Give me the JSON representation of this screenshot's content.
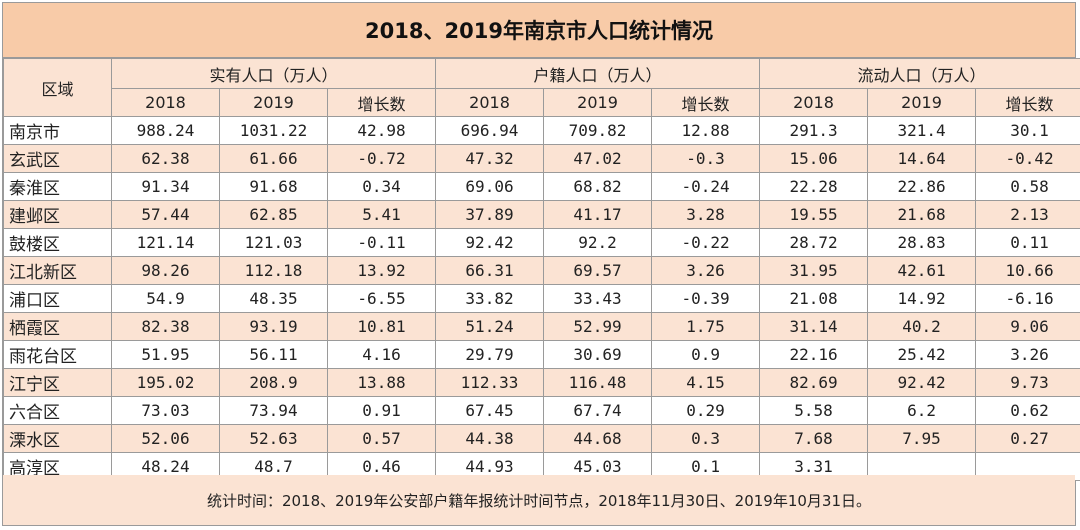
{
  "title": "2018、2019年南京市人口统计情况",
  "header": {
    "region_label": "区域",
    "groups": [
      "实有人口（万人）",
      "户籍人口（万人）",
      "流动人口（万人）"
    ],
    "sub": [
      "2018",
      "2019",
      "增长数"
    ]
  },
  "rows": [
    {
      "region": "南京市",
      "v": [
        "988.24",
        "1031.22",
        "42.98",
        "696.94",
        "709.82",
        "12.88",
        "291.3",
        "321.4",
        "30.1"
      ]
    },
    {
      "region": "玄武区",
      "v": [
        "62.38",
        "61.66",
        "-0.72",
        "47.32",
        "47.02",
        "-0.3",
        "15.06",
        "14.64",
        "-0.42"
      ]
    },
    {
      "region": "秦淮区",
      "v": [
        "91.34",
        "91.68",
        "0.34",
        "69.06",
        "68.82",
        "-0.24",
        "22.28",
        "22.86",
        "0.58"
      ]
    },
    {
      "region": "建邺区",
      "v": [
        "57.44",
        "62.85",
        "5.41",
        "37.89",
        "41.17",
        "3.28",
        "19.55",
        "21.68",
        "2.13"
      ]
    },
    {
      "region": "鼓楼区",
      "v": [
        "121.14",
        "121.03",
        "-0.11",
        "92.42",
        "92.2",
        "-0.22",
        "28.72",
        "28.83",
        "0.11"
      ]
    },
    {
      "region": "江北新区",
      "v": [
        "98.26",
        "112.18",
        "13.92",
        "66.31",
        "69.57",
        "3.26",
        "31.95",
        "42.61",
        "10.66"
      ]
    },
    {
      "region": "浦口区",
      "v": [
        "54.9",
        "48.35",
        "-6.55",
        "33.82",
        "33.43",
        "-0.39",
        "21.08",
        "14.92",
        "-6.16"
      ]
    },
    {
      "region": "栖霞区",
      "v": [
        "82.38",
        "93.19",
        "10.81",
        "51.24",
        "52.99",
        "1.75",
        "31.14",
        "40.2",
        "9.06"
      ]
    },
    {
      "region": "雨花台区",
      "v": [
        "51.95",
        "56.11",
        "4.16",
        "29.79",
        "30.69",
        "0.9",
        "22.16",
        "25.42",
        "3.26"
      ]
    },
    {
      "region": "江宁区",
      "v": [
        "195.02",
        "208.9",
        "13.88",
        "112.33",
        "116.48",
        "4.15",
        "82.69",
        "92.42",
        "9.73"
      ]
    },
    {
      "region": "六合区",
      "v": [
        "73.03",
        "73.94",
        "0.91",
        "67.45",
        "67.74",
        "0.29",
        "5.58",
        "6.2",
        "0.62"
      ]
    },
    {
      "region": "溧水区",
      "v": [
        "52.06",
        "52.63",
        "0.57",
        "44.38",
        "44.68",
        "0.3",
        "7.68",
        "7.95",
        "0.27"
      ]
    },
    {
      "region": "高淳区",
      "v": [
        "48.24",
        "48.7",
        "0.46",
        "44.93",
        "45.03",
        "0.1",
        "3.31",
        "",
        ""
      ]
    }
  ],
  "footnote": "统计时间：2018、2019年公安部户籍年报统计时间节点，2018年11月30日、2019年10月31日。"
}
